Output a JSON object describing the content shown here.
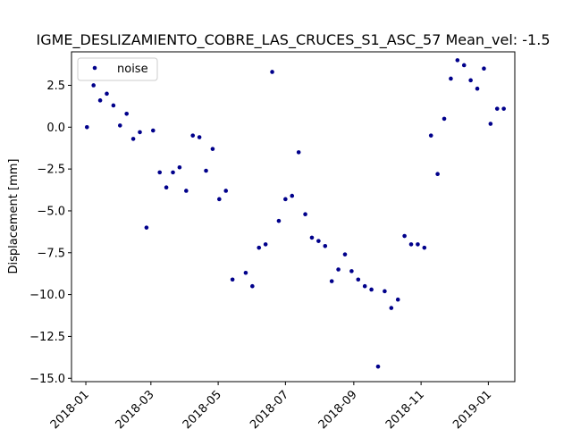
{
  "chart_data": {
    "type": "scatter",
    "title": "IGME_DESLIZAMIENTO_COBRE_LAS_CRUCES_S1_ASC_57     Mean_vel: -1.5",
    "xlabel": "",
    "ylabel": "Displacement [mm]",
    "xlim": [
      "2017-12-19",
      "2019-01-25"
    ],
    "ylim": [
      -15.2,
      4.5
    ],
    "grid": false,
    "legend_position": "upper-left",
    "x_tick_labels": [
      "2018-01",
      "2018-03",
      "2018-05",
      "2018-07",
      "2018-09",
      "2018-11",
      "2019-01"
    ],
    "y_tick_labels": [
      "2.5",
      "0.0",
      "−2.5",
      "−5.0",
      "−7.5",
      "−10.0",
      "−12.5",
      "−15.0"
    ],
    "series": [
      {
        "name": "noise",
        "color": "#00008b",
        "x": [
          "2018-01-02",
          "2018-01-08",
          "2018-01-14",
          "2018-01-20",
          "2018-01-26",
          "2018-02-01",
          "2018-02-07",
          "2018-02-13",
          "2018-02-19",
          "2018-02-25",
          "2018-03-03",
          "2018-03-09",
          "2018-03-15",
          "2018-03-21",
          "2018-03-27",
          "2018-04-02",
          "2018-04-08",
          "2018-04-14",
          "2018-04-20",
          "2018-04-26",
          "2018-05-02",
          "2018-05-08",
          "2018-05-14",
          "2018-05-26",
          "2018-06-01",
          "2018-06-07",
          "2018-06-13",
          "2018-06-19",
          "2018-06-25",
          "2018-07-01",
          "2018-07-07",
          "2018-07-13",
          "2018-07-19",
          "2018-07-25",
          "2018-07-31",
          "2018-08-06",
          "2018-08-12",
          "2018-08-18",
          "2018-08-24",
          "2018-08-30",
          "2018-09-05",
          "2018-09-11",
          "2018-09-17",
          "2018-09-23",
          "2018-09-29",
          "2018-10-05",
          "2018-10-11",
          "2018-10-17",
          "2018-10-23",
          "2018-10-29",
          "2018-11-04",
          "2018-11-10",
          "2018-11-16",
          "2018-11-22",
          "2018-11-28",
          "2018-12-04",
          "2018-12-10",
          "2018-12-16",
          "2018-12-22",
          "2018-12-28",
          "2019-01-03",
          "2019-01-09",
          "2019-01-15"
        ],
        "y": [
          0.0,
          2.5,
          1.6,
          2.0,
          1.3,
          0.1,
          0.8,
          -0.7,
          -0.3,
          -6.0,
          -0.2,
          -2.7,
          -3.6,
          -2.7,
          -2.4,
          -3.8,
          -0.5,
          -0.6,
          -2.6,
          -1.3,
          -4.3,
          -3.8,
          -9.1,
          -8.7,
          -9.5,
          -7.2,
          -7.0,
          3.3,
          -5.6,
          -4.3,
          -4.1,
          -1.5,
          -5.2,
          -6.6,
          -6.8,
          -7.1,
          -9.2,
          -8.5,
          -7.6,
          -8.6,
          -9.1,
          -9.5,
          -9.7,
          -14.3,
          -9.8,
          -10.8,
          -10.3,
          -6.5,
          -7.0,
          -7.0,
          -7.2,
          -0.5,
          -2.8,
          0.5,
          2.9,
          4.0,
          3.7,
          2.8,
          2.3,
          3.5,
          0.2,
          1.1,
          1.1
        ]
      }
    ]
  }
}
